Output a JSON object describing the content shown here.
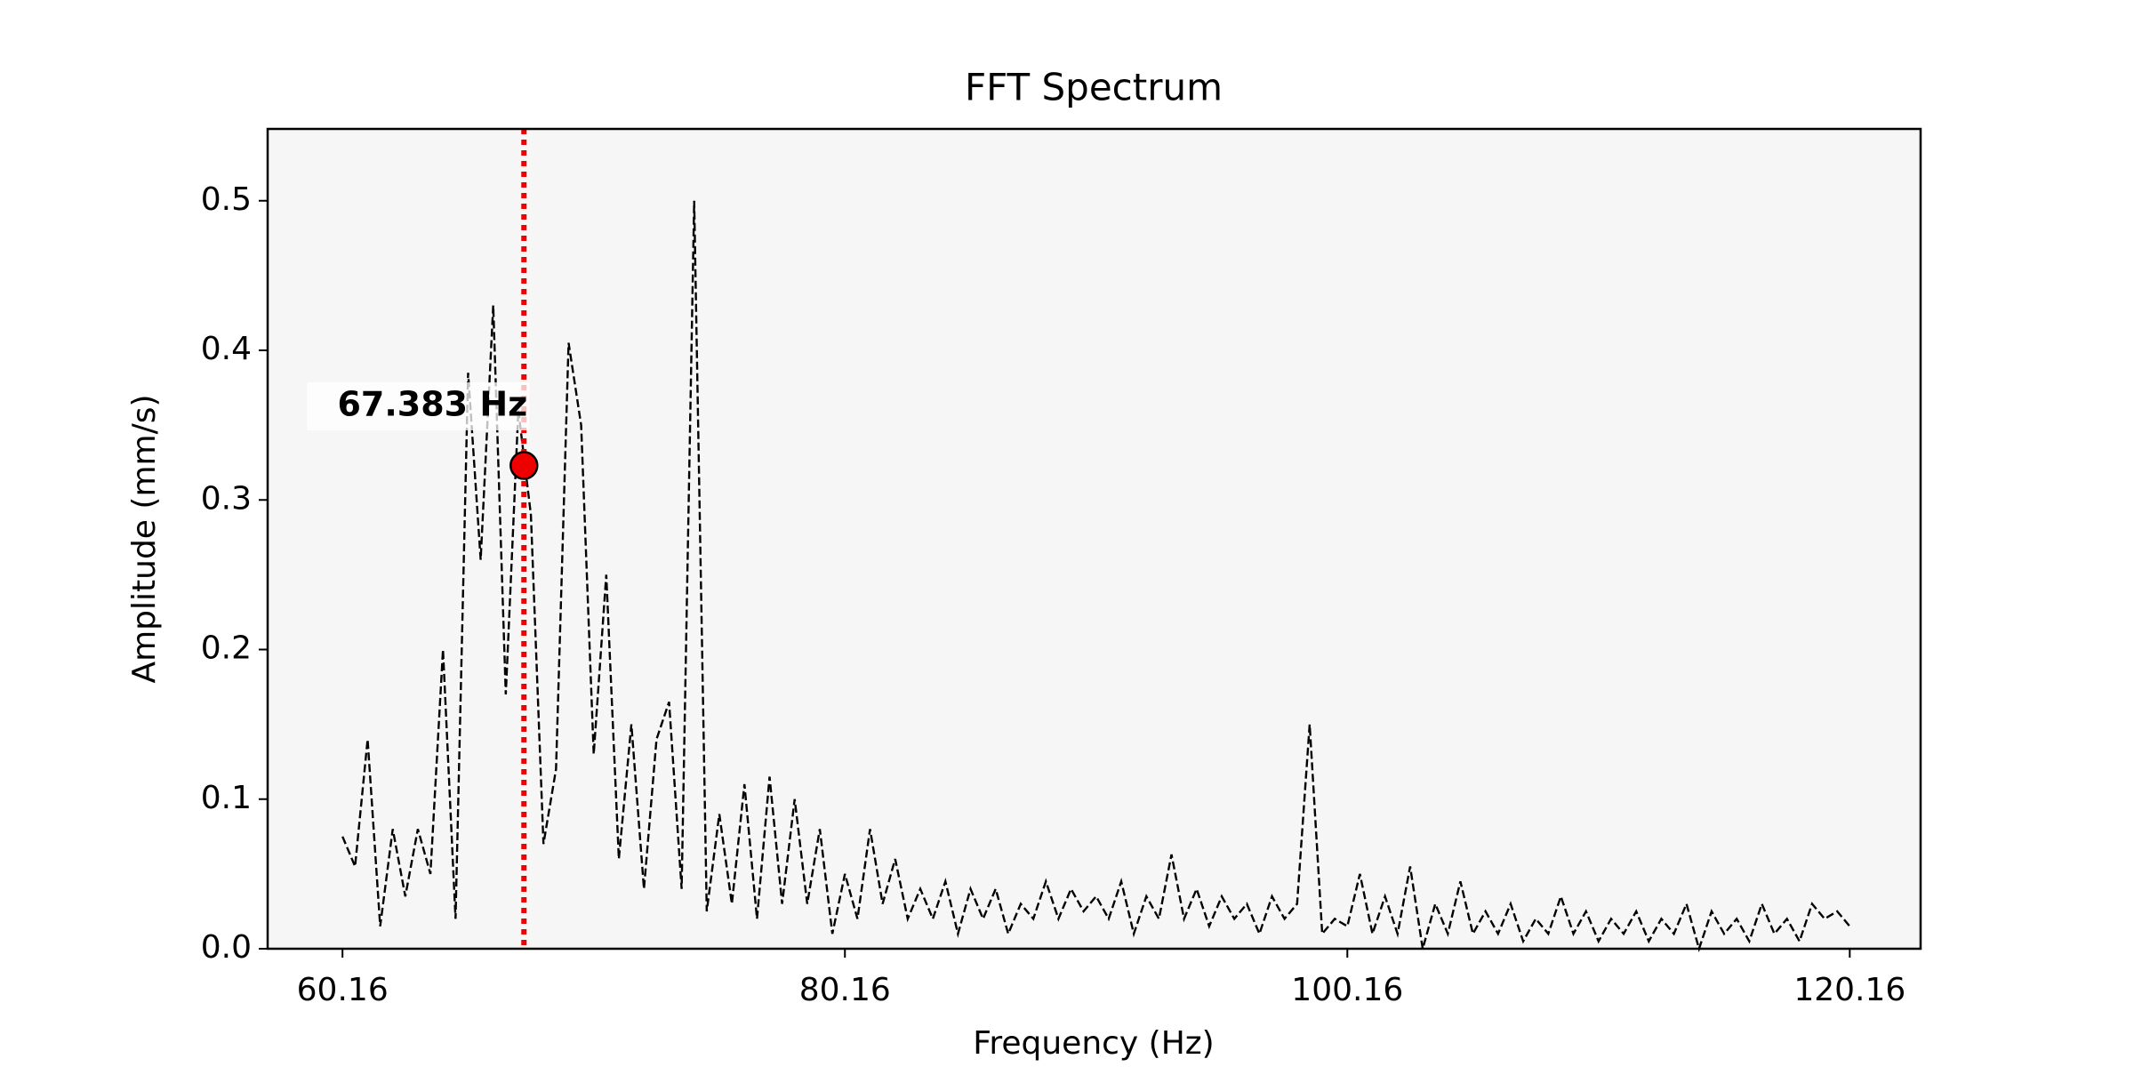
{
  "chart_data": {
    "type": "line",
    "title": "FFT Spectrum",
    "xlabel": "Frequency (Hz)",
    "ylabel": "Amplitude (mm/s)",
    "color": "#000000",
    "background": "#f6f6f6",
    "x": [
      60.16,
      60.66,
      61.16,
      61.66,
      62.16,
      62.66,
      63.16,
      63.66,
      64.16,
      64.66,
      65.16,
      65.66,
      66.16,
      66.66,
      67.16,
      67.66,
      68.16,
      68.66,
      69.16,
      69.66,
      70.16,
      70.66,
      71.16,
      71.66,
      72.16,
      72.66,
      73.16,
      73.66,
      74.16,
      74.66,
      75.16,
      75.66,
      76.16,
      76.66,
      77.16,
      77.66,
      78.16,
      78.66,
      79.16,
      79.66,
      80.16,
      80.66,
      81.16,
      81.66,
      82.16,
      82.66,
      83.16,
      83.66,
      84.16,
      84.66,
      85.16,
      85.66,
      86.16,
      86.66,
      87.16,
      87.66,
      88.16,
      88.66,
      89.16,
      89.66,
      90.16,
      90.66,
      91.16,
      91.66,
      92.16,
      92.66,
      93.16,
      93.66,
      94.16,
      94.66,
      95.16,
      95.66,
      96.16,
      96.66,
      97.16,
      97.66,
      98.16,
      98.66,
      99.16,
      99.66,
      100.16,
      100.66,
      101.16,
      101.66,
      102.16,
      102.66,
      103.16,
      103.66,
      104.16,
      104.66,
      105.16,
      105.66,
      106.16,
      106.66,
      107.16,
      107.66,
      108.16,
      108.66,
      109.16,
      109.66,
      110.16,
      110.66,
      111.16,
      111.66,
      112.16,
      112.66,
      113.16,
      113.66,
      114.16,
      114.66,
      115.16,
      115.66,
      116.16,
      116.66,
      117.16,
      117.66,
      118.16,
      118.66,
      119.16,
      119.66,
      120.16
    ],
    "values": [
      0.075,
      0.055,
      0.14,
      0.015,
      0.08,
      0.035,
      0.08,
      0.05,
      0.2,
      0.02,
      0.385,
      0.26,
      0.43,
      0.17,
      0.36,
      0.29,
      0.07,
      0.12,
      0.405,
      0.35,
      0.13,
      0.25,
      0.06,
      0.15,
      0.04,
      0.14,
      0.165,
      0.04,
      0.5,
      0.025,
      0.09,
      0.03,
      0.11,
      0.02,
      0.115,
      0.03,
      0.1,
      0.03,
      0.08,
      0.01,
      0.05,
      0.02,
      0.08,
      0.03,
      0.06,
      0.02,
      0.04,
      0.02,
      0.045,
      0.01,
      0.04,
      0.02,
      0.04,
      0.01,
      0.03,
      0.02,
      0.045,
      0.02,
      0.04,
      0.025,
      0.035,
      0.02,
      0.045,
      0.01,
      0.035,
      0.02,
      0.063,
      0.02,
      0.04,
      0.015,
      0.035,
      0.02,
      0.03,
      0.01,
      0.035,
      0.02,
      0.03,
      0.15,
      0.01,
      0.02,
      0.015,
      0.05,
      0.01,
      0.035,
      0.01,
      0.055,
      0.0,
      0.03,
      0.01,
      0.045,
      0.01,
      0.025,
      0.01,
      0.03,
      0.005,
      0.02,
      0.01,
      0.035,
      0.01,
      0.025,
      0.005,
      0.02,
      0.01,
      0.025,
      0.005,
      0.02,
      0.01,
      0.03,
      0.0,
      0.025,
      0.01,
      0.02,
      0.005,
      0.03,
      0.01,
      0.02,
      0.005,
      0.03,
      0.02,
      0.025,
      0.015
    ],
    "xlim": [
      57.18,
      122.98
    ],
    "ylim": [
      0,
      0.548
    ],
    "xticks": [
      60.16,
      80.16,
      100.16,
      120.16
    ],
    "yticks": [
      {
        "value": 0,
        "label": "0.0"
      },
      0.1,
      0.2,
      0.3,
      0.4,
      0.5
    ],
    "marker": {
      "x": 67.383,
      "y": 0.323,
      "label": "67.383 Hz",
      "color": "#ee0000"
    }
  }
}
